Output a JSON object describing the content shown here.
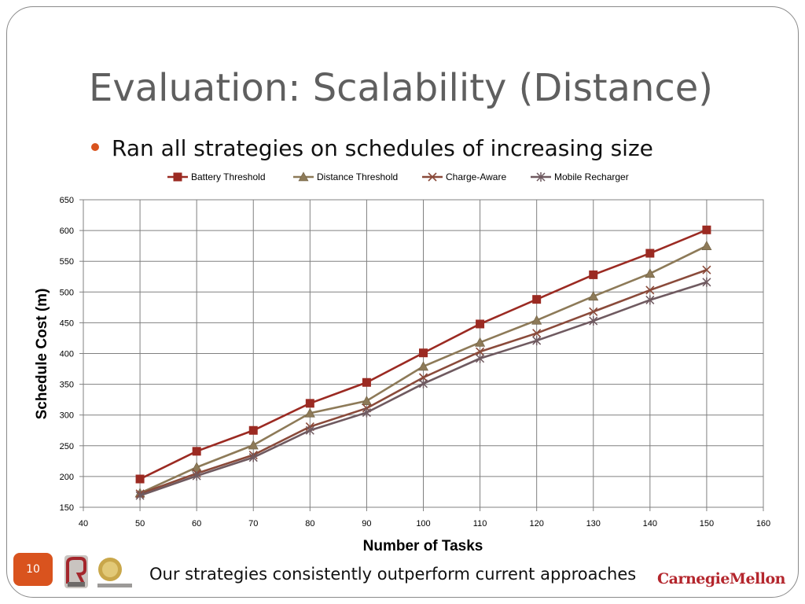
{
  "slide": {
    "title": "Evaluation: Scalability (Distance)",
    "bullet": "Ran all strategies on schedules of increasing size",
    "footer": "Our strategies consistently outperform current approaches",
    "page_number": "10",
    "logos": [
      "robotics-institute-logo",
      "rcommerce-laboratory-logo"
    ],
    "brand": "CarnegieMellon"
  },
  "colors": {
    "accent": "#d9531e",
    "battery_threshold": "#9b2a22",
    "distance_threshold": "#8d7a58",
    "charge_aware": "#8a4a3a",
    "mobile_recharger": "#6f5a60"
  },
  "chart_data": {
    "type": "line",
    "xlabel": "Number of Tasks",
    "ylabel": "Schedule Cost (m)",
    "xlim": [
      40,
      160
    ],
    "ylim": [
      150,
      650
    ],
    "xticks": [
      40,
      50,
      60,
      70,
      80,
      90,
      100,
      110,
      120,
      130,
      140,
      150,
      160
    ],
    "yticks": [
      150,
      200,
      250,
      300,
      350,
      400,
      450,
      500,
      550,
      600,
      650
    ],
    "grid": true,
    "legend": "top",
    "x": [
      50,
      60,
      70,
      80,
      90,
      100,
      110,
      120,
      130,
      140,
      150
    ],
    "series": [
      {
        "name": "Battery Threshold",
        "marker": "square",
        "values": [
          196,
          241,
          275,
          319,
          353,
          401,
          448,
          488,
          528,
          563,
          601
        ]
      },
      {
        "name": "Distance Threshold",
        "marker": "triangle",
        "values": [
          173,
          215,
          251,
          303,
          323,
          379,
          418,
          454,
          493,
          530,
          575
        ]
      },
      {
        "name": "Charge-Aware",
        "marker": "x",
        "values": [
          172,
          205,
          235,
          281,
          311,
          361,
          403,
          433,
          468,
          503,
          536
        ]
      },
      {
        "name": "Mobile Recharger",
        "marker": "star",
        "values": [
          169,
          201,
          231,
          275,
          304,
          351,
          392,
          421,
          453,
          487,
          516
        ]
      }
    ]
  }
}
